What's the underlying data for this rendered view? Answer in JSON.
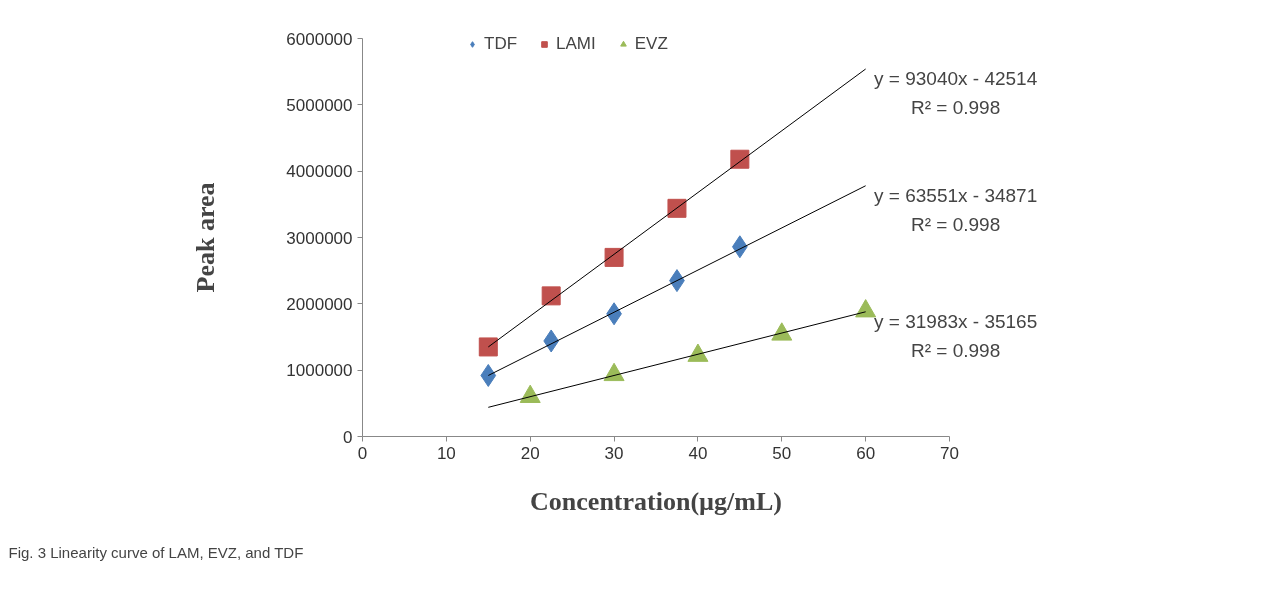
{
  "chart_data": {
    "type": "scatter",
    "xlabel": "Concentration(µg/mL)",
    "ylabel": "Peak area",
    "xlim": [
      0,
      70
    ],
    "xticks": [
      0,
      10,
      20,
      30,
      40,
      50,
      60,
      70
    ],
    "ylim": [
      0,
      6000000
    ],
    "yticks": [
      0,
      1000000,
      2000000,
      3000000,
      4000000,
      5000000,
      6000000
    ],
    "grid": false,
    "legend": "top",
    "series": [
      {
        "name": "TDF",
        "color": "#4a7ebb",
        "marker": "diamond",
        "x": [
          15,
          22.5,
          30,
          37.5,
          45
        ],
        "values": [
          920000,
          1440000,
          1850000,
          2350000,
          2860000
        ]
      },
      {
        "name": "LAMI",
        "color": "#c0504d",
        "marker": "square",
        "x": [
          15,
          22.5,
          30,
          37.5,
          45
        ],
        "values": [
          1350000,
          2120000,
          2700000,
          3440000,
          4180000
        ]
      },
      {
        "name": "EVZ",
        "color": "#9bbb59",
        "marker": "triangle",
        "x": [
          20,
          30,
          40,
          50,
          60
        ],
        "values": [
          600000,
          930000,
          1220000,
          1540000,
          1890000
        ]
      },
      {
        "type": "line",
        "color": "#000000",
        "x": [
          15,
          60
        ],
        "values": [
          1350000,
          5540000
        ]
      },
      {
        "type": "line",
        "color": "#000000",
        "x": [
          15,
          60
        ],
        "values": [
          920000,
          3780000
        ]
      },
      {
        "type": "line",
        "color": "#000000",
        "x": [
          15,
          60
        ],
        "values": [
          440000,
          1880000
        ]
      }
    ],
    "annotations": [
      "y = 93040x - 42514\nR² = 0.998",
      "y = 63551x - 34871\nR² = 0.998",
      "y = 31983x - 35165\nR² = 0.998",
      "Fig. 3 Linearity curve of LAM, EVZ, and TDF"
    ]
  }
}
